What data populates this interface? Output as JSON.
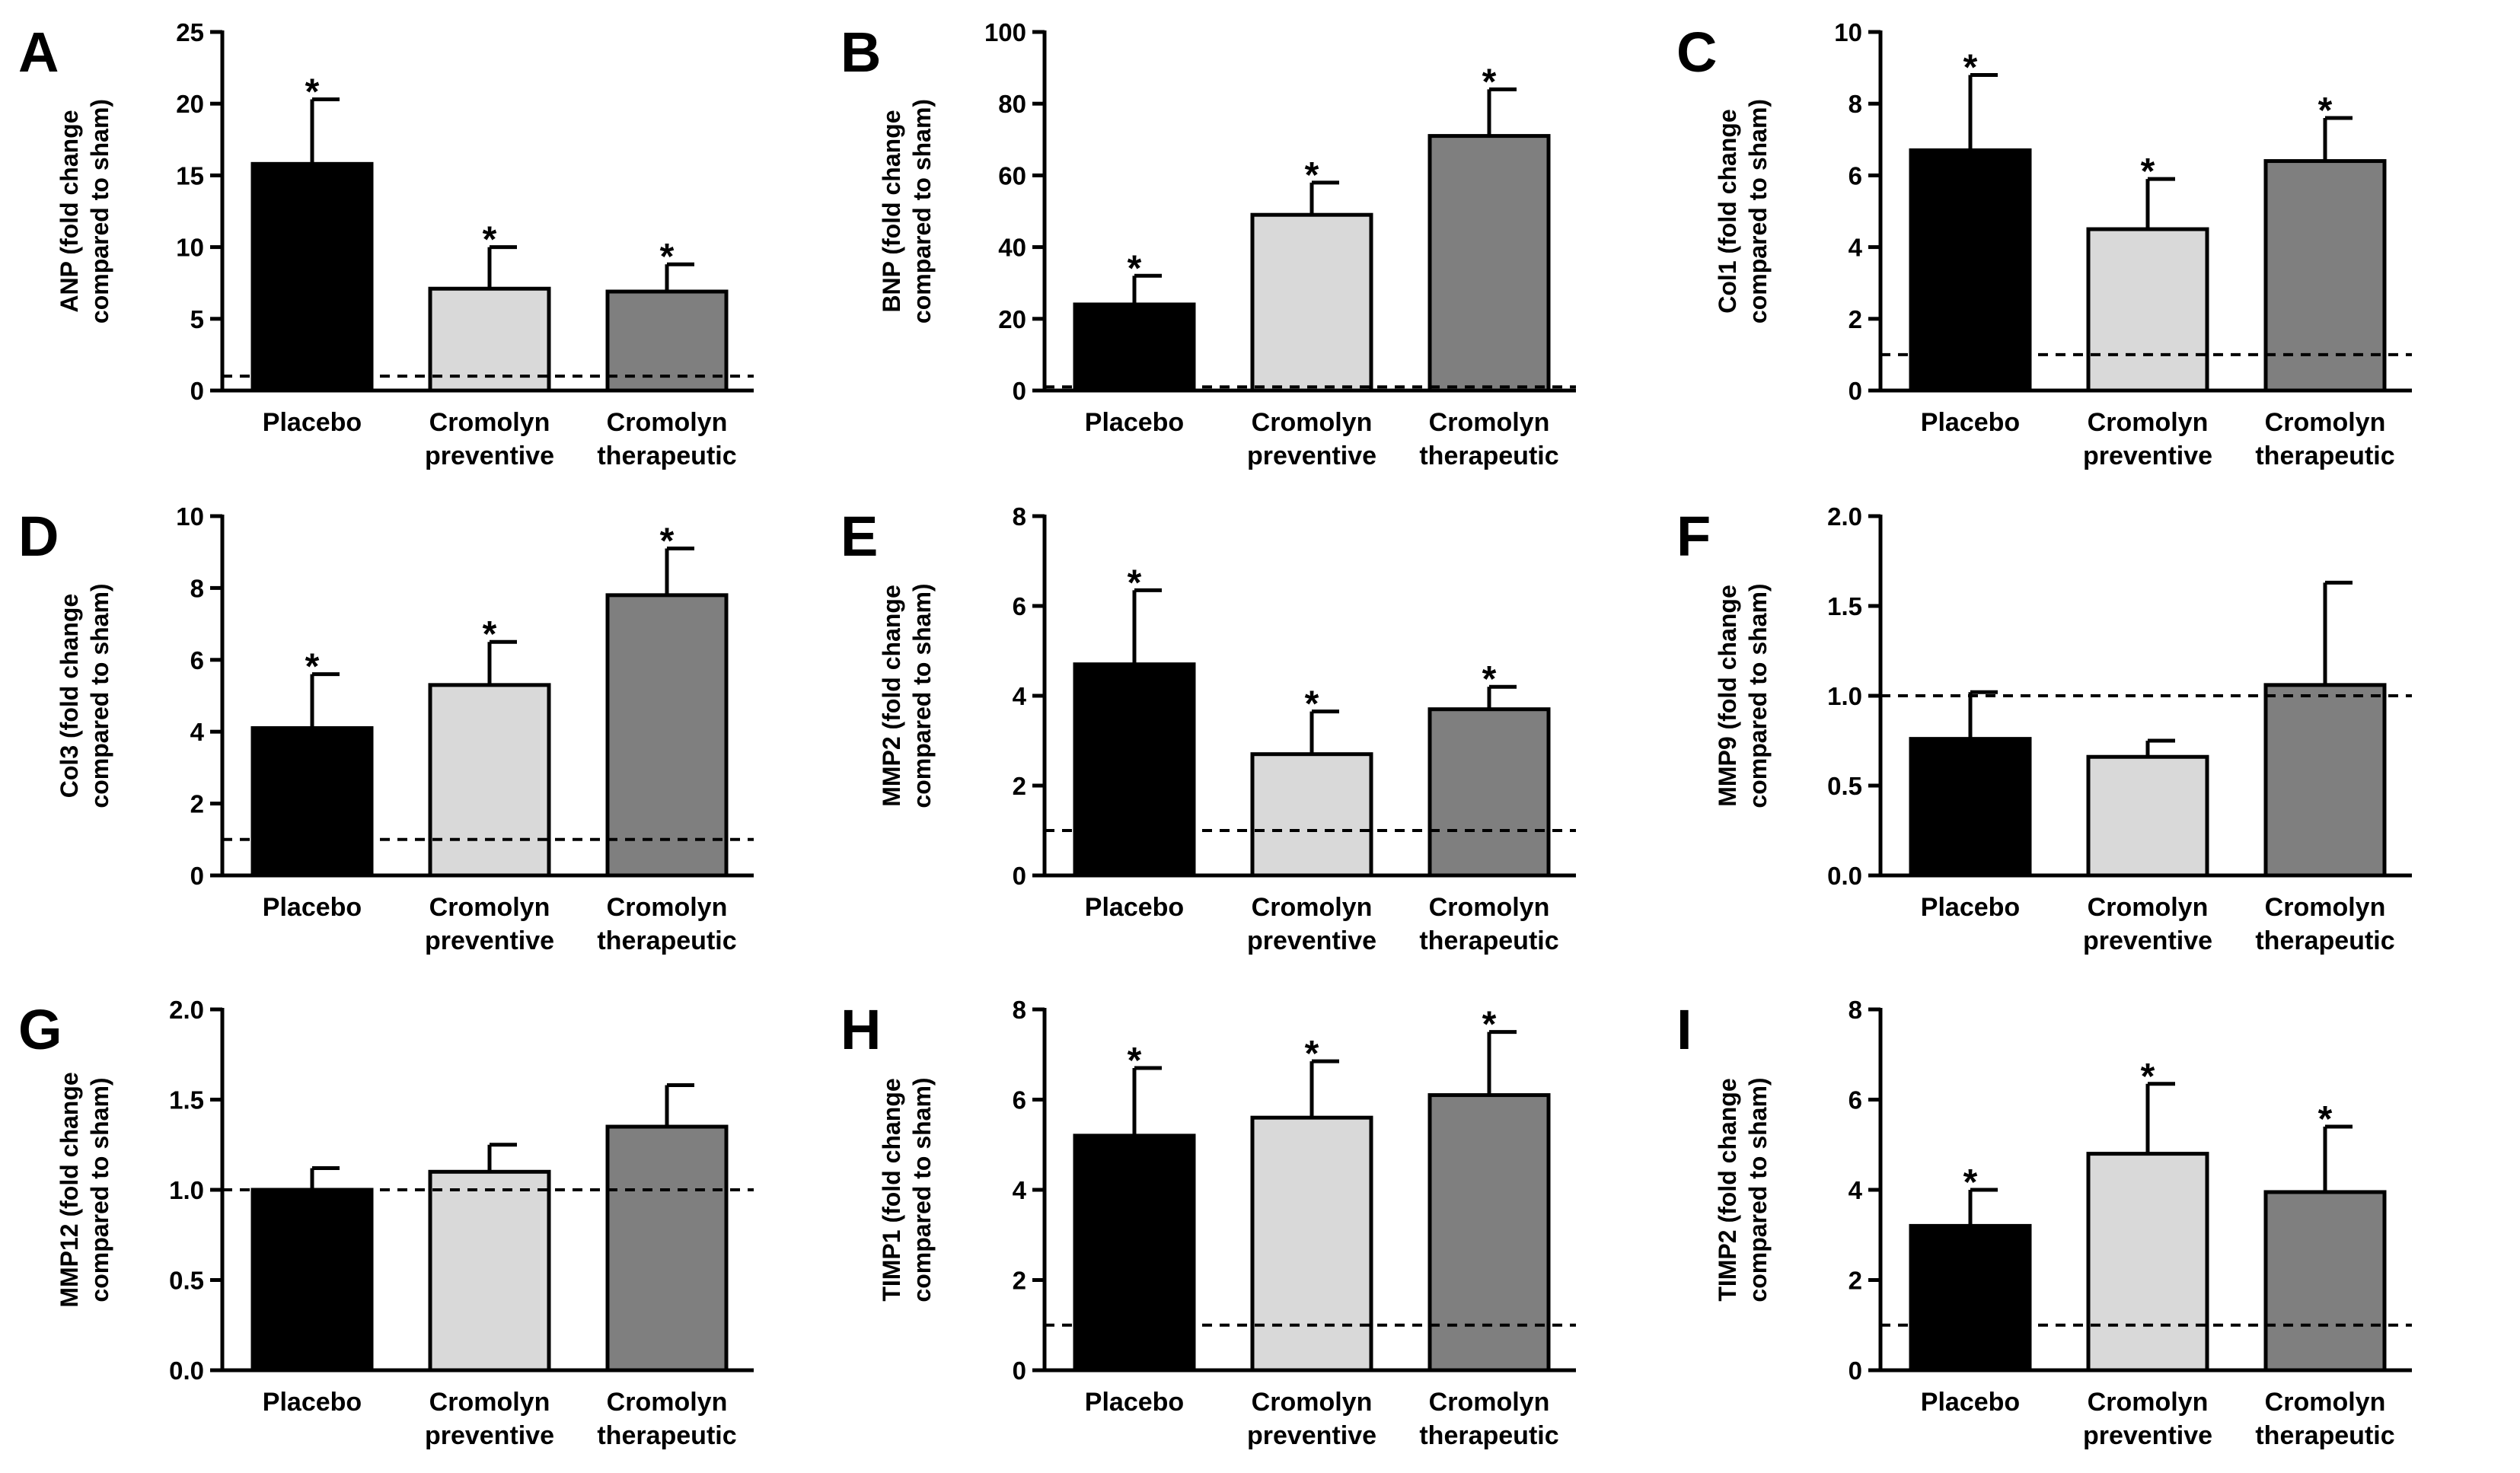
{
  "colors": {
    "placebo": "#000000",
    "preventive": "#d9d9d9",
    "therapeutic": "#7f7f7f",
    "axis": "#000000"
  },
  "chart_data": [
    {
      "type": "bar",
      "panel": "A",
      "ylabel_lines": [
        "ANP (fold change",
        "compared to sham)"
      ],
      "categories": [
        [
          "Placebo"
        ],
        [
          "Cromolyn",
          "preventive"
        ],
        [
          "Cromolyn",
          "therapeutic"
        ]
      ],
      "values": [
        15.8,
        7.1,
        6.9
      ],
      "errors": [
        4.5,
        2.9,
        1.9
      ],
      "significant": [
        true,
        true,
        true
      ],
      "ylim": [
        0,
        25
      ],
      "yticks": [
        0,
        5,
        10,
        15,
        20,
        25
      ],
      "ytick_labels": [
        "0",
        "5",
        "10",
        "15",
        "20",
        "25"
      ],
      "reference_line": 1
    },
    {
      "type": "bar",
      "panel": "B",
      "ylabel_lines": [
        "BNP (fold change",
        "compared to sham)"
      ],
      "categories": [
        [
          "Placebo"
        ],
        [
          "Cromolyn",
          "preventive"
        ],
        [
          "Cromolyn",
          "therapeutic"
        ]
      ],
      "values": [
        24,
        49,
        71
      ],
      "errors": [
        8,
        9,
        13
      ],
      "significant": [
        true,
        true,
        true
      ],
      "ylim": [
        0,
        100
      ],
      "yticks": [
        0,
        20,
        40,
        60,
        80,
        100
      ],
      "ytick_labels": [
        "0",
        "20",
        "40",
        "60",
        "80",
        "100"
      ],
      "reference_line": 1
    },
    {
      "type": "bar",
      "panel": "C",
      "ylabel_lines": [
        "Col1 (fold change",
        "compared to sham)"
      ],
      "categories": [
        [
          "Placebo"
        ],
        [
          "Cromolyn",
          "preventive"
        ],
        [
          "Cromolyn",
          "therapeutic"
        ]
      ],
      "values": [
        6.7,
        4.5,
        6.4
      ],
      "errors": [
        2.1,
        1.4,
        1.2
      ],
      "significant": [
        true,
        true,
        true
      ],
      "ylim": [
        0,
        10
      ],
      "yticks": [
        0,
        2,
        4,
        6,
        8,
        10
      ],
      "ytick_labels": [
        "0",
        "2",
        "4",
        "6",
        "8",
        "10"
      ],
      "reference_line": 1
    },
    {
      "type": "bar",
      "panel": "D",
      "ylabel_lines": [
        "Col3 (fold change",
        "compared to sham)"
      ],
      "categories": [
        [
          "Placebo"
        ],
        [
          "Cromolyn",
          "preventive"
        ],
        [
          "Cromolyn",
          "therapeutic"
        ]
      ],
      "values": [
        4.1,
        5.3,
        7.8
      ],
      "errors": [
        1.5,
        1.2,
        1.3
      ],
      "significant": [
        true,
        true,
        true
      ],
      "ylim": [
        0,
        10
      ],
      "yticks": [
        0,
        2,
        4,
        6,
        8,
        10
      ],
      "ytick_labels": [
        "0",
        "2",
        "4",
        "6",
        "8",
        "10"
      ],
      "reference_line": 1
    },
    {
      "type": "bar",
      "panel": "E",
      "ylabel_lines": [
        "MMP2 (fold change",
        "compared to sham)"
      ],
      "categories": [
        [
          "Placebo"
        ],
        [
          "Cromolyn",
          "preventive"
        ],
        [
          "Cromolyn",
          "therapeutic"
        ]
      ],
      "values": [
        4.7,
        2.7,
        3.7
      ],
      "errors": [
        1.65,
        0.95,
        0.5
      ],
      "significant": [
        true,
        true,
        true
      ],
      "ylim": [
        0,
        8
      ],
      "yticks": [
        0,
        2,
        4,
        6,
        8
      ],
      "ytick_labels": [
        "0",
        "2",
        "4",
        "6",
        "8"
      ],
      "reference_line": 1
    },
    {
      "type": "bar",
      "panel": "F",
      "ylabel_lines": [
        "MMP9 (fold change",
        "compared to sham)"
      ],
      "categories": [
        [
          "Placebo"
        ],
        [
          "Cromolyn",
          "preventive"
        ],
        [
          "Cromolyn",
          "therapeutic"
        ]
      ],
      "values": [
        0.76,
        0.66,
        1.06
      ],
      "errors": [
        0.26,
        0.09,
        0.57
      ],
      "significant": [
        false,
        false,
        false
      ],
      "ylim": [
        0,
        2
      ],
      "yticks": [
        0,
        0.5,
        1,
        1.5,
        2
      ],
      "ytick_labels": [
        "0.0",
        "0.5",
        "1.0",
        "1.5",
        "2.0"
      ],
      "reference_line": 1
    },
    {
      "type": "bar",
      "panel": "G",
      "ylabel_lines": [
        "MMP12 (fold change",
        "compared to sham)"
      ],
      "categories": [
        [
          "Placebo"
        ],
        [
          "Cromolyn",
          "preventive"
        ],
        [
          "Cromolyn",
          "therapeutic"
        ]
      ],
      "values": [
        1.0,
        1.1,
        1.35
      ],
      "errors": [
        0.12,
        0.15,
        0.23
      ],
      "significant": [
        false,
        false,
        false
      ],
      "ylim": [
        0,
        2
      ],
      "yticks": [
        0,
        0.5,
        1,
        1.5,
        2
      ],
      "ytick_labels": [
        "0.0",
        "0.5",
        "1.0",
        "1.5",
        "2.0"
      ],
      "reference_line": 1
    },
    {
      "type": "bar",
      "panel": "H",
      "ylabel_lines": [
        "TIMP1 (fold change",
        "compared to sham)"
      ],
      "categories": [
        [
          "Placebo"
        ],
        [
          "Cromolyn",
          "preventive"
        ],
        [
          "Cromolyn",
          "therapeutic"
        ]
      ],
      "values": [
        5.2,
        5.6,
        6.1
      ],
      "errors": [
        1.5,
        1.25,
        1.4
      ],
      "significant": [
        true,
        true,
        true
      ],
      "ylim": [
        0,
        8
      ],
      "yticks": [
        0,
        2,
        4,
        6,
        8
      ],
      "ytick_labels": [
        "0",
        "2",
        "4",
        "6",
        "8"
      ],
      "reference_line": 1
    },
    {
      "type": "bar",
      "panel": "I",
      "ylabel_lines": [
        "TIMP2 (fold change",
        "compared to sham)"
      ],
      "categories": [
        [
          "Placebo"
        ],
        [
          "Cromolyn",
          "preventive"
        ],
        [
          "Cromolyn",
          "therapeutic"
        ]
      ],
      "values": [
        3.2,
        4.8,
        3.95
      ],
      "errors": [
        0.8,
        1.55,
        1.45
      ],
      "significant": [
        true,
        true,
        true
      ],
      "ylim": [
        0,
        8
      ],
      "yticks": [
        0,
        2,
        4,
        6,
        8
      ],
      "ytick_labels": [
        "0",
        "2",
        "4",
        "6",
        "8"
      ],
      "reference_line": 1
    }
  ]
}
